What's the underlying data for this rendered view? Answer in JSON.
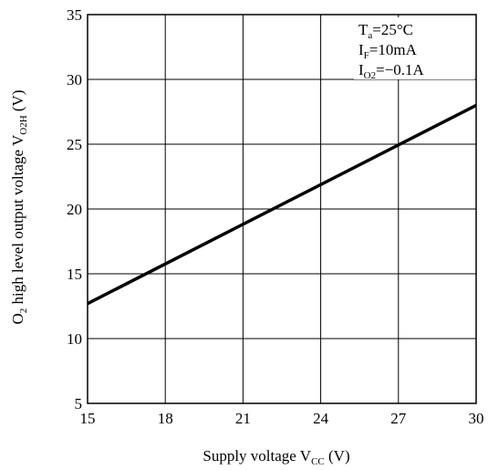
{
  "chart_data": {
    "type": "line",
    "xlabel": {
      "main": "Supply voltage V",
      "sub": "CC",
      "unit": " (V)"
    },
    "ylabel": {
      "pre": "O",
      "pre_sub": "2",
      "main": " high level output voltage V",
      "sub": "O2H",
      "unit": " (V)"
    },
    "xlim": [
      15,
      30
    ],
    "ylim": [
      5,
      35
    ],
    "xticks": [
      "15",
      "18",
      "21",
      "24",
      "27",
      "30"
    ],
    "yticks": [
      "5",
      "10",
      "15",
      "20",
      "25",
      "30",
      "35"
    ],
    "grid": true,
    "conditions": [
      {
        "main": "T",
        "sub": "a",
        "rest": "=25°C"
      },
      {
        "main": "I",
        "sub": "F",
        "rest": "=10mA"
      },
      {
        "main": "I",
        "sub": "O2",
        "rest": "=−0.1A"
      }
    ],
    "series": [
      {
        "x": [
          15,
          30
        ],
        "y": [
          12.7,
          28.0
        ]
      }
    ]
  }
}
